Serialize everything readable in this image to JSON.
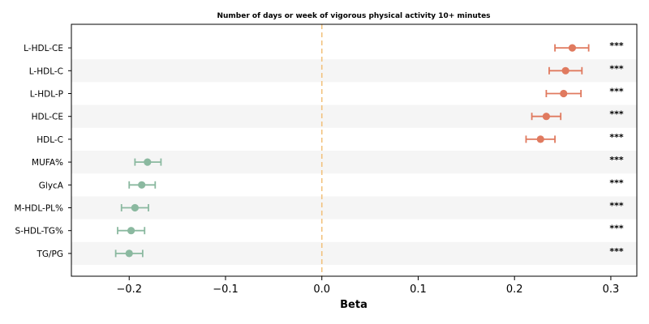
{
  "chart_data": {
    "type": "forest",
    "title": "Number of days or week of vigorous physical activity 10+ minutes",
    "xlabel": "Beta",
    "xlim": [
      -0.26,
      0.327
    ],
    "xticks": [
      -0.2,
      -0.1,
      0.0,
      0.1,
      0.2,
      0.3
    ],
    "xtick_labels": [
      "−0.2",
      "−0.1",
      "0.0",
      "0.1",
      "0.2",
      "0.3"
    ],
    "reference_line": 0.0,
    "colors": {
      "positive": "#e07a5f",
      "negative": "#8bb9a0",
      "reference": "#f2c27e",
      "stripe": "#f5f5f5"
    },
    "items": [
      {
        "label": "L-HDL-CE",
        "beta": 0.26,
        "lo": 0.242,
        "hi": 0.277,
        "sig": "***"
      },
      {
        "label": "L-HDL-C",
        "beta": 0.253,
        "lo": 0.236,
        "hi": 0.27,
        "sig": "***"
      },
      {
        "label": "L-HDL-P",
        "beta": 0.251,
        "lo": 0.233,
        "hi": 0.269,
        "sig": "***"
      },
      {
        "label": "HDL-CE",
        "beta": 0.233,
        "lo": 0.218,
        "hi": 0.248,
        "sig": "***"
      },
      {
        "label": "HDL-C",
        "beta": 0.227,
        "lo": 0.212,
        "hi": 0.242,
        "sig": "***"
      },
      {
        "label": "MUFA%",
        "beta": -0.181,
        "lo": -0.194,
        "hi": -0.167,
        "sig": "***"
      },
      {
        "label": "GlycA",
        "beta": -0.187,
        "lo": -0.2,
        "hi": -0.173,
        "sig": "***"
      },
      {
        "label": "M-HDL-PL%",
        "beta": -0.194,
        "lo": -0.208,
        "hi": -0.18,
        "sig": "***"
      },
      {
        "label": "S-HDL-TG%",
        "beta": -0.198,
        "lo": -0.212,
        "hi": -0.184,
        "sig": "***"
      },
      {
        "label": "TG/PG",
        "beta": -0.2,
        "lo": -0.214,
        "hi": -0.186,
        "sig": "***"
      }
    ]
  }
}
